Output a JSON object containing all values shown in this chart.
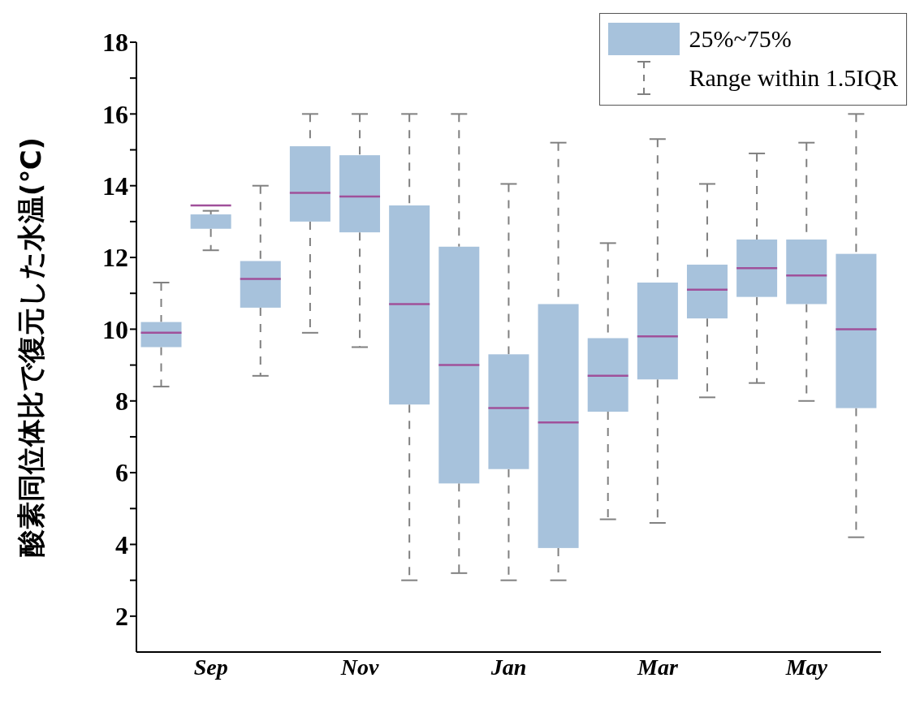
{
  "chart_data": {
    "type": "box",
    "ylabel": "酸素同位体比で復元した水温(℃)",
    "categories": [
      null,
      "Sep",
      null,
      null,
      "Nov",
      null,
      null,
      "Jan",
      null,
      null,
      "Mar",
      null,
      null,
      "May",
      null
    ],
    "ylim": [
      1,
      18
    ],
    "yticks": [
      2,
      {
        "value": 3,
        "label": null
      },
      4,
      {
        "value": 5,
        "label": null
      },
      6,
      {
        "value": 7,
        "label": null
      },
      8,
      {
        "value": 9,
        "label": null
      },
      10,
      {
        "value": 11,
        "label": null
      },
      12,
      {
        "value": 13,
        "label": null
      },
      14,
      {
        "value": 15,
        "label": null
      },
      16,
      {
        "value": 17,
        "label": null
      },
      18
    ],
    "legend": "top right",
    "grid": false,
    "annotations": [
      "Range within 1.5IQR"
    ],
    "series": [
      {
        "name": "25%~75%",
        "color": "#a7c2dc",
        "boxes": [
          {
            "low": 8.4,
            "q1": 9.5,
            "median": 9.9,
            "q3": 10.2,
            "high": 11.3
          },
          {
            "low": 12.2,
            "q1": 12.8,
            "median": 13.45,
            "q3": 13.2,
            "high": 13.3
          },
          {
            "low": 8.7,
            "q1": 10.6,
            "median": 11.4,
            "q3": 11.9,
            "high": 14.0
          },
          {
            "low": 9.9,
            "q1": 13.0,
            "median": 13.8,
            "q3": 15.1,
            "high": 16.0
          },
          {
            "low": 9.5,
            "q1": 12.7,
            "median": 13.7,
            "q3": 14.85,
            "high": 16.0
          },
          {
            "low": 3.0,
            "q1": 7.9,
            "median": 10.7,
            "q3": 13.45,
            "high": 16.0
          },
          {
            "low": 3.2,
            "q1": 5.7,
            "median": 9.0,
            "q3": 12.3,
            "high": 16.0
          },
          {
            "low": 3.0,
            "q1": 6.1,
            "median": 7.8,
            "q3": 9.3,
            "high": 14.05
          },
          {
            "low": 3.0,
            "q1": 3.9,
            "median": 7.4,
            "q3": 10.7,
            "high": 15.2
          },
          {
            "low": 4.7,
            "q1": 7.7,
            "median": 8.7,
            "q3": 9.75,
            "high": 12.4
          },
          {
            "low": 4.6,
            "q1": 8.6,
            "median": 9.8,
            "q3": 11.3,
            "high": 15.3
          },
          {
            "low": 8.1,
            "q1": 10.3,
            "median": 11.1,
            "q3": 11.8,
            "high": 14.05
          },
          {
            "low": 8.5,
            "q1": 10.9,
            "median": 11.7,
            "q3": 12.5,
            "high": 14.9
          },
          {
            "low": 8.0,
            "q1": 10.7,
            "median": 11.5,
            "q3": 12.5,
            "high": 15.2
          },
          {
            "low": 4.2,
            "q1": 7.8,
            "median": 10.0,
            "q3": 12.1,
            "high": 16.0
          }
        ]
      }
    ]
  }
}
